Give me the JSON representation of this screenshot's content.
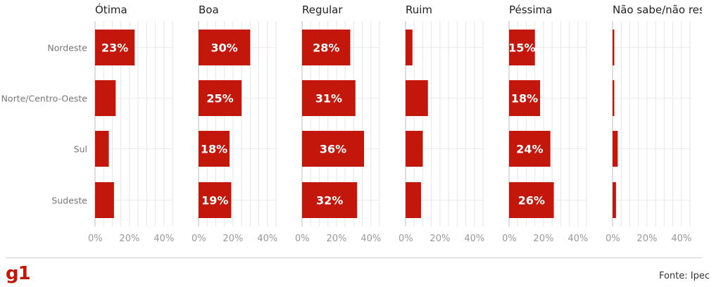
{
  "chart_data": {
    "type": "bar",
    "orientation": "horizontal",
    "layout": "small-multiples",
    "categories": [
      "Nordeste",
      "Norte/Centro-Oeste",
      "Sul",
      "Sudeste"
    ],
    "xlim": [
      0,
      45
    ],
    "ticks": [
      0,
      20,
      40
    ],
    "tick_labels": [
      "0%",
      "20%",
      "40%"
    ],
    "grid": true,
    "bar_color": "#c4170c",
    "series": [
      {
        "name": "Ótima",
        "values": [
          23,
          12,
          8,
          11
        ],
        "labels": [
          "23%",
          "",
          "",
          ""
        ]
      },
      {
        "name": "Boa",
        "values": [
          30,
          25,
          18,
          19
        ],
        "labels": [
          "30%",
          "25%",
          "18%",
          "19%"
        ]
      },
      {
        "name": "Regular",
        "values": [
          28,
          31,
          36,
          32
        ],
        "labels": [
          "28%",
          "31%",
          "36%",
          "32%"
        ]
      },
      {
        "name": "Ruim",
        "values": [
          4,
          13,
          10,
          9
        ],
        "labels": [
          "",
          "",
          "",
          ""
        ]
      },
      {
        "name": "Péssima",
        "values": [
          15,
          18,
          24,
          26
        ],
        "labels": [
          "15%",
          "18%",
          "24%",
          "26%"
        ]
      },
      {
        "name": "Não sabe/não resp",
        "values": [
          1,
          1,
          3,
          2
        ],
        "labels": [
          "",
          "",
          "",
          ""
        ]
      }
    ]
  },
  "footer": {
    "logo": "g1",
    "source": "Fonte: Ipec"
  }
}
